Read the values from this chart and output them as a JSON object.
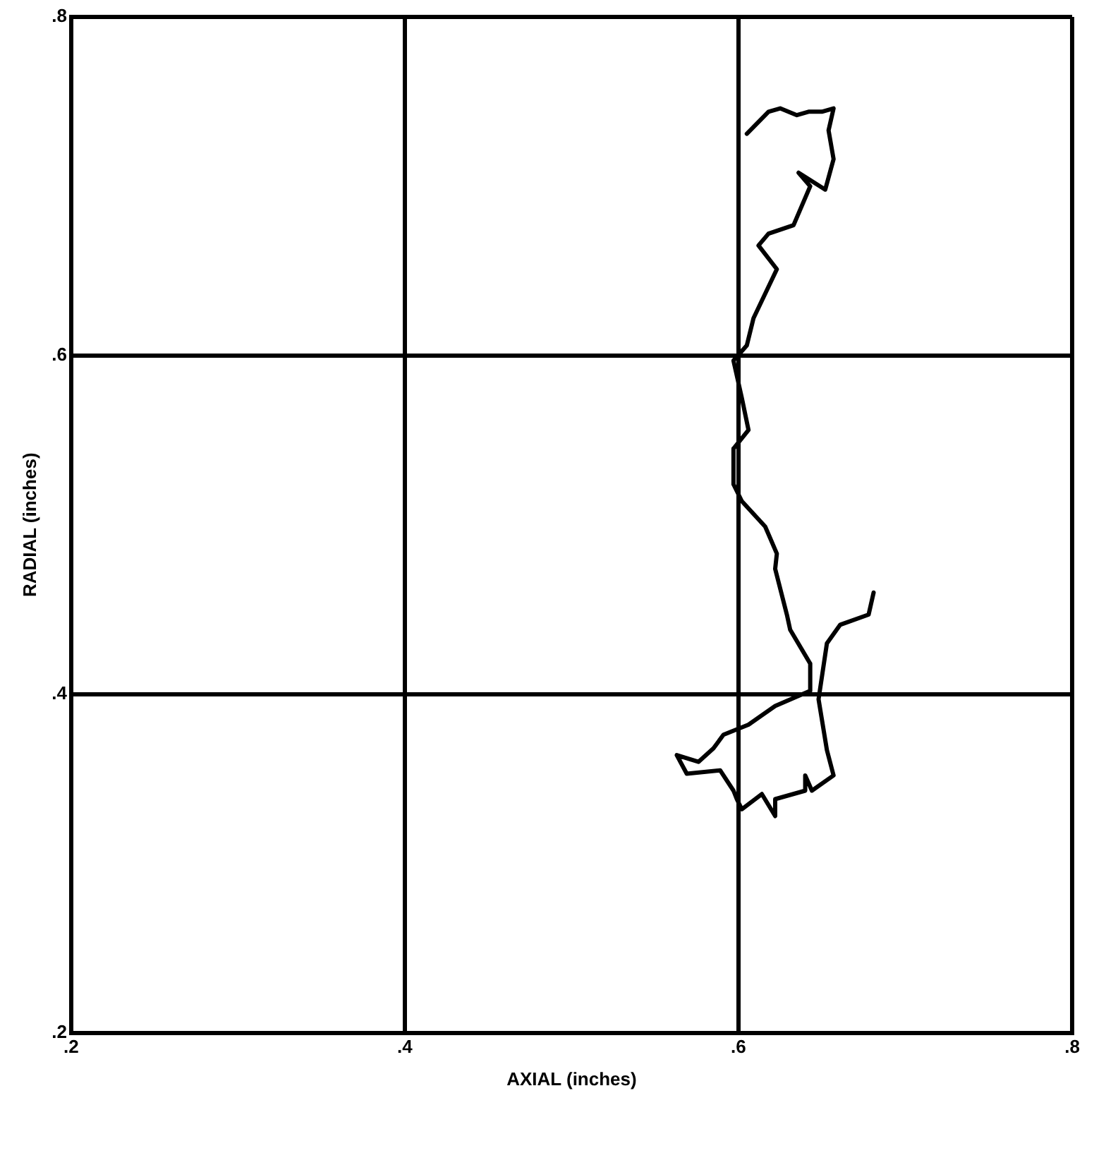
{
  "chart_data": {
    "type": "line",
    "xlabel": "AXIAL (inches)",
    "ylabel": "RADIAL (inches)",
    "xlim": [
      0.2,
      0.8
    ],
    "ylim": [
      0.2,
      0.8
    ],
    "xticks": [
      {
        "value": 0.2,
        "label": ".2"
      },
      {
        "value": 0.4,
        "label": ".4"
      },
      {
        "value": 0.6,
        "label": ".6"
      },
      {
        "value": 0.8,
        "label": ".8"
      }
    ],
    "yticks": [
      {
        "value": 0.2,
        "label": ".2"
      },
      {
        "value": 0.4,
        "label": ".4"
      },
      {
        "value": 0.6,
        "label": ".6"
      },
      {
        "value": 0.8,
        "label": ".8"
      }
    ],
    "grid": true,
    "legend": false,
    "marker": "none",
    "line_style": "solid",
    "series": [
      {
        "color": "#000000",
        "x": [
          0.605,
          0.618,
          0.625,
          0.635,
          0.642,
          0.65,
          0.657,
          0.654,
          0.657,
          0.652,
          0.636,
          0.643,
          0.633,
          0.618,
          0.612,
          0.623,
          0.609,
          0.605,
          0.597,
          0.602,
          0.606,
          0.597,
          0.597,
          0.602,
          0.616,
          0.623,
          0.622,
          0.629,
          0.631,
          0.643,
          0.643,
          0.622,
          0.606,
          0.591,
          0.585,
          0.576,
          0.563,
          0.569,
          0.589,
          0.597,
          0.599,
          0.602,
          0.614,
          0.622,
          0.622,
          0.64,
          0.64,
          0.644,
          0.657,
          0.653,
          0.648,
          0.653,
          0.661,
          0.678,
          0.681
        ],
        "values": [
          0.731,
          0.744,
          0.746,
          0.742,
          0.744,
          0.744,
          0.746,
          0.733,
          0.716,
          0.698,
          0.708,
          0.7,
          0.677,
          0.672,
          0.665,
          0.651,
          0.622,
          0.606,
          0.597,
          0.575,
          0.556,
          0.545,
          0.524,
          0.514,
          0.499,
          0.483,
          0.474,
          0.447,
          0.438,
          0.418,
          0.402,
          0.393,
          0.382,
          0.376,
          0.368,
          0.36,
          0.364,
          0.353,
          0.355,
          0.343,
          0.338,
          0.332,
          0.341,
          0.328,
          0.338,
          0.343,
          0.352,
          0.343,
          0.352,
          0.367,
          0.397,
          0.43,
          0.441,
          0.447,
          0.46
        ]
      }
    ]
  }
}
